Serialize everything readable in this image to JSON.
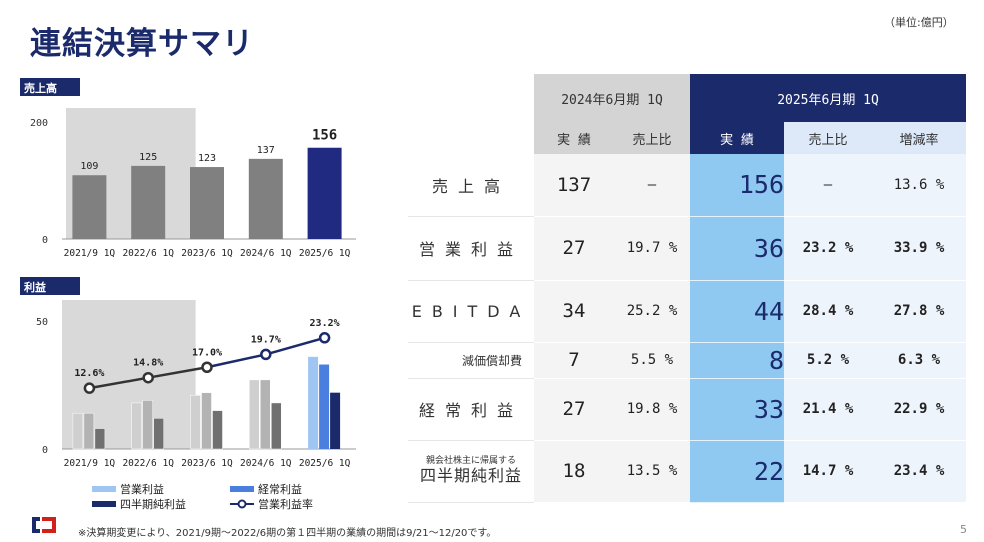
{
  "title": "連結決算サマリ",
  "unit": "（単位:億円）",
  "colors": {
    "navy": "#1b2a6b",
    "highlight": "#8fc9f2",
    "bar_grey": "#808080",
    "bar_highlight": "#1f2a80"
  },
  "sales_section": {
    "label": "売上高"
  },
  "profit_section": {
    "label": "利益"
  },
  "chart_data": [
    {
      "type": "bar",
      "title": "売上高",
      "categories": [
        "2021/9 1Q",
        "2022/6 1Q",
        "2023/6 1Q",
        "2024/6 1Q",
        "2025/6 1Q"
      ],
      "values": [
        109,
        125,
        123,
        137,
        156
      ],
      "data_labels": [
        "109",
        "125",
        "123",
        "137",
        "156"
      ],
      "ylim": [
        0,
        200
      ],
      "yticks": [
        "0",
        "200"
      ],
      "shaded_categories": [
        "2021/9 1Q",
        "2022/6 1Q"
      ],
      "highlight_category": "2025/6 1Q"
    },
    {
      "type": "bar",
      "title": "利益",
      "categories": [
        "2021/9 1Q",
        "2022/6 1Q",
        "2023/6 1Q",
        "2024/6 1Q",
        "2025/6 1Q"
      ],
      "series": [
        {
          "name": "営業利益",
          "values": [
            14,
            18,
            21,
            27,
            36
          ]
        },
        {
          "name": "経常利益",
          "values": [
            14,
            19,
            22,
            27,
            33
          ]
        },
        {
          "name": "四半期純利益",
          "values": [
            8,
            12,
            15,
            18,
            22
          ]
        }
      ],
      "line_series": {
        "name": "営業利益率",
        "values": [
          12.6,
          14.8,
          17.0,
          19.7,
          23.2
        ],
        "labels": [
          "12.6%",
          "14.8%",
          "17.0%",
          "19.7%",
          "23.2%"
        ]
      },
      "ylim": [
        0,
        50
      ],
      "yticks": [
        "0",
        "50"
      ],
      "shaded_categories": [
        "2021/9 1Q",
        "2022/6 1Q"
      ],
      "legend": [
        "営業利益",
        "経常利益",
        "四半期純利益",
        "営業利益率"
      ]
    }
  ],
  "table": {
    "header_2024": "2024年6月期 1Q",
    "header_2025": "2025年6月期 1Q",
    "sub_2024": [
      "実 績",
      "売上比"
    ],
    "sub_2025": [
      "実 績",
      "売上比",
      "増減率"
    ],
    "rows": [
      {
        "label": "売上高",
        "v2024": "137",
        "r2024": "―",
        "v2025": "156",
        "r2025": "―",
        "growth": "13.6 %"
      },
      {
        "label": "営業利益",
        "v2024": "27",
        "r2024": "19.7 %",
        "v2025": "36",
        "r2025": "23.2 %",
        "growth": "33.9 %"
      },
      {
        "label": "EBITDA",
        "v2024": "34",
        "r2024": "25.2 %",
        "v2025": "44",
        "r2025": "28.4 %",
        "growth": "27.8 %"
      },
      {
        "label": "減価償却費",
        "v2024": "7",
        "r2024": "5.5 %",
        "v2025": "8",
        "r2025": "5.2 %",
        "growth": "6.3 %"
      },
      {
        "label": "経常利益",
        "v2024": "27",
        "r2024": "19.8 %",
        "v2025": "33",
        "r2025": "21.4 %",
        "growth": "22.9 %"
      },
      {
        "label_small": "親会社株主に帰属する",
        "label": "四半期純利益",
        "v2024": "18",
        "r2024": "13.5 %",
        "v2025": "22",
        "r2025": "14.7 %",
        "growth": "23.4 %"
      }
    ]
  },
  "footnote": "※決算期変更により、2021/9期〜2022/6期の第１四半期の業績の期間は9/21〜12/20です。",
  "page_number": "5"
}
